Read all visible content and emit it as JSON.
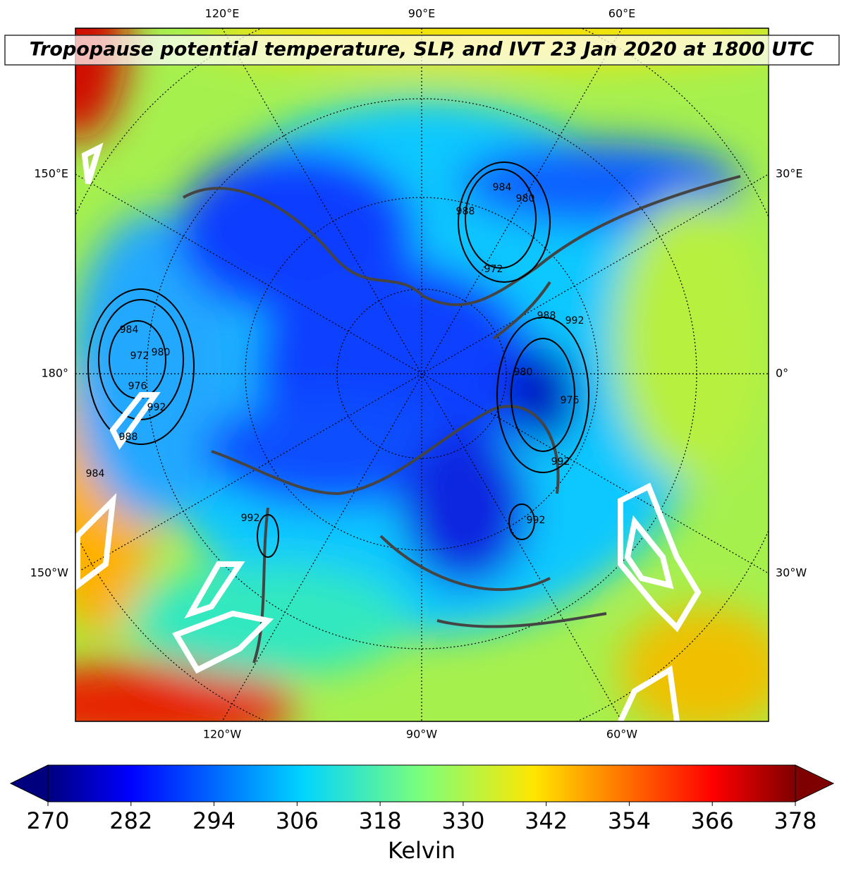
{
  "title": "Tropopause potential temperature, SLP, and IVT 23 Jan 2020 at 1800 UTC",
  "longitude_labels": {
    "top": [
      "120°E",
      "90°E",
      "60°E"
    ],
    "bottom": [
      "120°W",
      "90°W",
      "60°W"
    ],
    "left": [
      "150°E",
      "180°",
      "150°W"
    ],
    "right": [
      "30°E",
      "0°",
      "30°W"
    ]
  },
  "slp_contour_labels": [
    "984",
    "972",
    "980",
    "976",
    "992",
    "988",
    "984",
    "988",
    "984",
    "980",
    "972",
    "988",
    "992",
    "980",
    "976",
    "992",
    "992",
    "992"
  ],
  "colorbar": {
    "colormap": "jet",
    "lim": [
      270,
      378
    ],
    "ticks": [
      270,
      282,
      294,
      306,
      318,
      330,
      342,
      354,
      366,
      378
    ],
    "label": "Kelvin",
    "extend": "both"
  }
}
